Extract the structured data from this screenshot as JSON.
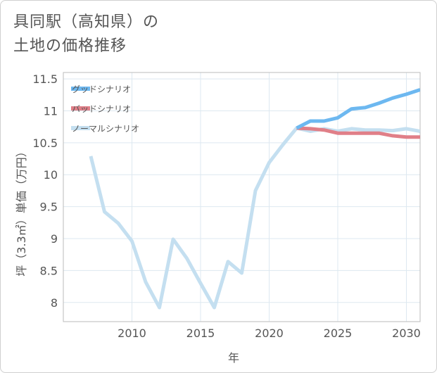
{
  "header": {
    "title_line1": "具同駅（高知県）の",
    "title_line2": "土地の価格推移"
  },
  "chart_data": {
    "type": "line",
    "title": "具同駅（高知県）の土地の価格推移",
    "xlabel": "年",
    "ylabel": "坪（3.3㎡）単価（万円）",
    "xlim": [
      2005,
      2031
    ],
    "ylim": [
      7.7,
      11.6
    ],
    "xticks": [
      2010,
      2015,
      2020,
      2025,
      2030
    ],
    "yticks": [
      8,
      8.5,
      9,
      9.5,
      10,
      10.5,
      11,
      11.5
    ],
    "ytick_labels": [
      "8",
      "8.5",
      "9",
      "9.5",
      "10",
      "10.5",
      "11",
      "11.5"
    ],
    "grid": true,
    "legend_position": "top-left",
    "series": [
      {
        "name": "グッドシナリオ",
        "color": "#6db8f0",
        "x": [
          2022,
          2023,
          2024,
          2025,
          2026,
          2027,
          2028,
          2029,
          2030,
          2031
        ],
        "values": [
          10.73,
          10.84,
          10.84,
          10.89,
          11.03,
          11.05,
          11.12,
          11.2,
          11.26,
          11.33
        ]
      },
      {
        "name": "バッドシナリオ",
        "color": "#e07f88",
        "x": [
          2022,
          2023,
          2024,
          2025,
          2026,
          2027,
          2028,
          2029,
          2030,
          2031
        ],
        "values": [
          10.73,
          10.72,
          10.7,
          10.65,
          10.65,
          10.65,
          10.65,
          10.61,
          10.59,
          10.59
        ]
      },
      {
        "name": "ノーマルシナリオ",
        "color": "#c4dff0",
        "x": [
          2007,
          2008,
          2009,
          2010,
          2011,
          2012,
          2013,
          2014,
          2015,
          2016,
          2017,
          2018,
          2019,
          2020,
          2021,
          2022,
          2023,
          2024,
          2025,
          2026,
          2027,
          2028,
          2029,
          2030,
          2031
        ],
        "values": [
          10.29,
          9.42,
          9.24,
          8.96,
          8.32,
          7.92,
          8.99,
          8.69,
          8.3,
          7.92,
          8.64,
          8.46,
          9.75,
          10.19,
          10.47,
          10.73,
          10.68,
          10.72,
          10.68,
          10.72,
          10.7,
          10.7,
          10.69,
          10.72,
          10.68
        ]
      }
    ]
  }
}
